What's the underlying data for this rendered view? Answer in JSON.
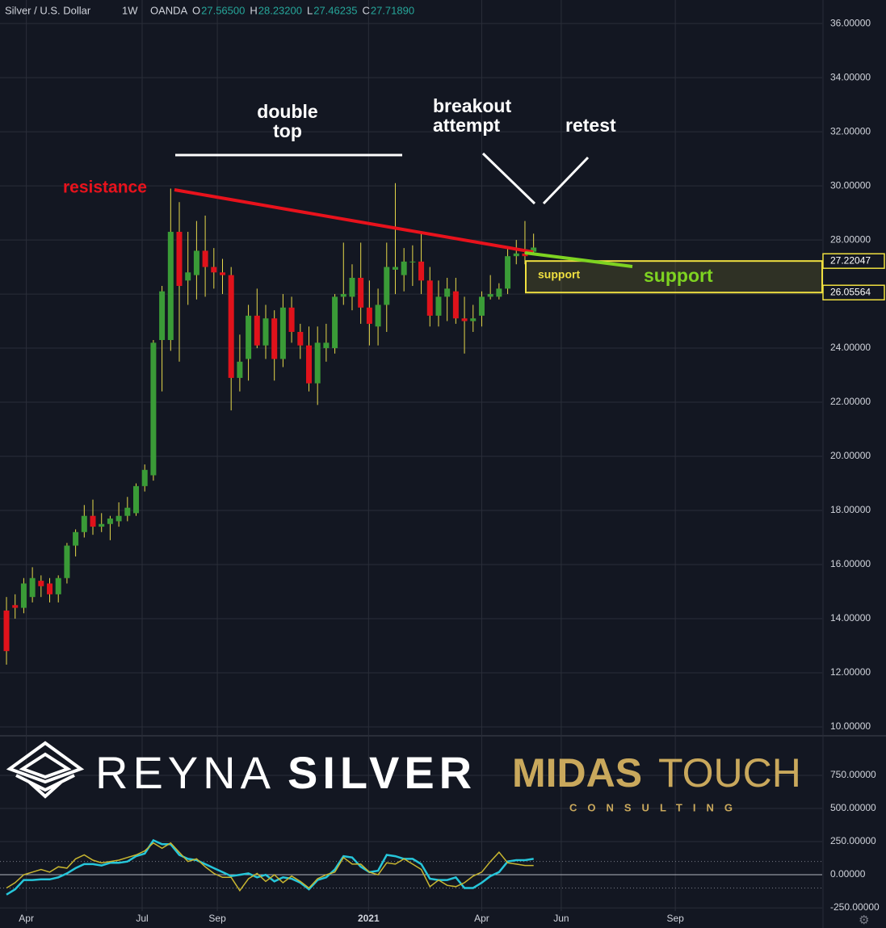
{
  "header": {
    "symbol": "Silver / U.S. Dollar",
    "interval": "1W",
    "exchange": "OANDA",
    "ohlc": [
      {
        "key": "O",
        "value": {
          "value": 27.565,
          "label": "27.56500"
        }
      },
      {
        "key": "H",
        "value": {
          "value": 28.232,
          "label": "28.23200"
        }
      },
      {
        "key": "L",
        "value": {
          "value": 27.46235,
          "label": "27.46235"
        }
      },
      {
        "key": "C",
        "value": {
          "value": 27.7189,
          "label": "27.71890"
        }
      }
    ]
  },
  "annotations": {
    "double_top": [
      "double",
      "top"
    ],
    "breakout": [
      "breakout",
      "attempt"
    ],
    "retest": "retest",
    "resistance": "resistance",
    "support_small": "support",
    "support_big": "support"
  },
  "logos": {
    "reyna_light": "REYNA",
    "reyna_bold": "SILVER",
    "midas_bold": "MIDAS",
    "midas_light": "TOUCH",
    "consulting": "CONSULTING"
  },
  "chart_data": [
    {
      "type": "candlestick",
      "up_color": "#3a9b37",
      "down_color": "#e0121b",
      "wick_color": "#e6d84a",
      "xlim": [
        -0.75,
        94.4
      ],
      "ylim": [
        9.7,
        36.87
      ],
      "grid": true,
      "yticks": [
        {
          "value": 10,
          "label": "10.00000"
        },
        {
          "value": 12,
          "label": "12.00000"
        },
        {
          "value": 14,
          "label": "14.00000"
        },
        {
          "value": 16,
          "label": "16.00000"
        },
        {
          "value": 18,
          "label": "18.00000"
        },
        {
          "value": 20,
          "label": "20.00000"
        },
        {
          "value": 22,
          "label": "22.00000"
        },
        {
          "value": 24,
          "label": "24.00000"
        },
        {
          "value": 26,
          "label": "26.00000"
        },
        {
          "value": 28,
          "label": "28.00000"
        },
        {
          "value": 30,
          "label": "30.00000"
        },
        {
          "value": 32,
          "label": "32.00000"
        },
        {
          "value": 34,
          "label": "34.00000"
        },
        {
          "value": 36,
          "label": "36.00000"
        }
      ],
      "open": [
        14.3,
        14.5,
        14.4,
        14.8,
        15.4,
        15.3,
        14.9,
        15.5,
        16.7,
        17.2,
        17.8,
        17.4,
        17.5,
        17.6,
        17.8,
        17.9,
        18.9,
        19.3,
        24.3,
        24.3,
        28.3,
        26.5,
        26.7,
        27.6,
        27.0,
        26.8,
        26.7,
        22.9,
        23.6,
        25.2,
        24.1,
        25.1,
        23.6,
        25.5,
        24.6,
        24.1,
        22.7,
        24.0,
        24.0,
        25.9,
        25.9,
        26.6,
        25.5,
        24.8,
        25.6,
        26.9,
        26.7,
        27.2,
        27.2,
        26.5,
        25.2,
        25.9,
        26.1,
        25.1,
        25.0,
        25.2,
        25.9,
        25.9,
        26.2,
        27.4,
        27.5,
        27.565
      ],
      "high": [
        14.8,
        14.9,
        15.5,
        15.9,
        15.6,
        15.5,
        15.6,
        16.8,
        17.3,
        18.2,
        18.4,
        17.9,
        17.8,
        18.3,
        18.5,
        19.0,
        19.7,
        24.3,
        26.3,
        29.9,
        29.4,
        28.3,
        28.7,
        28.9,
        27.7,
        27.3,
        27.0,
        24.5,
        25.6,
        26.2,
        25.6,
        25.4,
        26.0,
        25.9,
        24.9,
        24.8,
        24.8,
        24.9,
        26.0,
        27.9,
        27.1,
        27.9,
        26.5,
        26.2,
        27.9,
        30.1,
        27.7,
        27.8,
        28.3,
        27.0,
        26.5,
        26.6,
        26.6,
        25.9,
        25.6,
        26.1,
        26.7,
        26.4,
        27.7,
        28.0,
        28.7,
        28.232
      ],
      "low": [
        12.3,
        14.0,
        14.2,
        14.6,
        14.8,
        14.6,
        14.6,
        15.3,
        16.3,
        17.0,
        17.1,
        17.2,
        16.9,
        17.4,
        17.6,
        17.8,
        18.7,
        19.1,
        22.4,
        23.9,
        23.5,
        25.6,
        25.8,
        25.9,
        26.2,
        26.0,
        21.7,
        22.4,
        22.8,
        24.0,
        23.6,
        22.8,
        23.3,
        24.2,
        23.6,
        22.4,
        21.9,
        23.5,
        23.8,
        25.6,
        25.4,
        24.9,
        24.1,
        24.1,
        24.6,
        26.0,
        26.1,
        26.3,
        26.0,
        24.8,
        24.8,
        25.0,
        24.9,
        23.8,
        24.6,
        24.8,
        25.8,
        25.8,
        26.0,
        27.1,
        27.1,
        27.46235
      ],
      "close": [
        12.8,
        14.4,
        15.3,
        15.5,
        15.2,
        14.9,
        15.5,
        16.7,
        17.2,
        17.8,
        17.4,
        17.5,
        17.7,
        17.8,
        18.1,
        18.9,
        19.5,
        24.2,
        26.1,
        28.3,
        26.3,
        26.8,
        27.6,
        27.0,
        26.8,
        26.7,
        22.9,
        23.5,
        25.2,
        24.1,
        25.1,
        23.6,
        25.5,
        24.6,
        24.1,
        22.7,
        24.2,
        24.2,
        25.9,
        26.0,
        26.6,
        25.5,
        24.9,
        25.6,
        27.0,
        27.0,
        27.2,
        27.2,
        26.5,
        25.2,
        25.9,
        26.2,
        25.1,
        25.0,
        25.1,
        25.9,
        26.0,
        26.2,
        27.4,
        27.5,
        27.4,
        27.7189
      ],
      "support_zone": {
        "top": 27.22047,
        "bottom": 26.05564,
        "color": "#f0e040"
      }
    },
    {
      "type": "line",
      "xlim": [
        -0.75,
        94.4
      ],
      "ylim": [
        -274,
        1043
      ],
      "grid": true,
      "xticks": [
        {
          "value": 2.3,
          "label": "Apr"
        },
        {
          "value": 15.7,
          "label": "Jul"
        },
        {
          "value": 24.4,
          "label": "Sep"
        },
        {
          "value": 41.9,
          "label": "2021"
        },
        {
          "value": 55.0,
          "label": "Apr"
        },
        {
          "value": 64.2,
          "label": "Jun"
        },
        {
          "value": 77.4,
          "label": "Sep"
        }
      ],
      "yticks": [
        {
          "value": -250,
          "label": "-250.00000"
        },
        {
          "value": 0,
          "label": "0.00000"
        },
        {
          "value": 250,
          "label": "250.00000"
        },
        {
          "value": 500,
          "label": "500.00000"
        },
        {
          "value": 750,
          "label": "750.00000"
        }
      ],
      "levels": [
        100,
        -100
      ],
      "series": [
        {
          "color": "#26c6da",
          "values": [
            -150,
            -110,
            -40,
            -40,
            -35,
            -35,
            -20,
            10,
            50,
            80,
            80,
            70,
            90,
            90,
            100,
            140,
            160,
            260,
            230,
            230,
            150,
            120,
            110,
            80,
            50,
            20,
            -10,
            0,
            10,
            -20,
            0,
            -50,
            -20,
            -30,
            -60,
            -110,
            -40,
            -20,
            40,
            140,
            130,
            60,
            20,
            30,
            150,
            140,
            120,
            120,
            80,
            -30,
            -40,
            -40,
            -20,
            -100,
            -100,
            -60,
            -10,
            20,
            100,
            110,
            110,
            120
          ]
        },
        {
          "color": "#c8b630",
          "values": [
            -100,
            -60,
            0,
            20,
            40,
            20,
            60,
            50,
            120,
            150,
            110,
            90,
            100,
            110,
            130,
            150,
            180,
            240,
            200,
            240,
            170,
            100,
            120,
            60,
            10,
            -20,
            -20,
            -120,
            -30,
            10,
            -50,
            0,
            -60,
            -10,
            -50,
            -100,
            -30,
            0,
            20,
            130,
            80,
            80,
            20,
            0,
            90,
            80,
            120,
            80,
            40,
            -90,
            -40,
            -80,
            -90,
            -60,
            -10,
            20,
            100,
            170,
            90,
            80,
            70,
            70
          ]
        }
      ]
    }
  ]
}
